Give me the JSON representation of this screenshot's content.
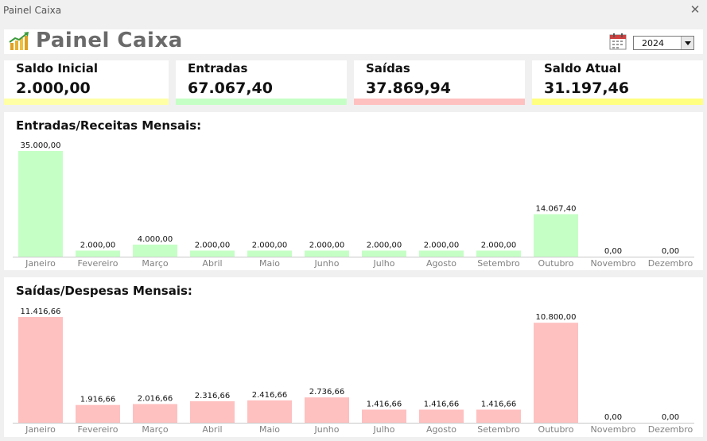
{
  "window": {
    "title": "Painel Caixa"
  },
  "header": {
    "title": "Painel Caixa",
    "year": "2024"
  },
  "cards": [
    {
      "label": "Saldo Inicial",
      "value": "2.000,00",
      "color": "#ffffa6"
    },
    {
      "label": "Entradas",
      "value": "67.067,40",
      "color": "#c6ffc6"
    },
    {
      "label": "Saídas",
      "value": "37.869,94",
      "color": "#ffc0c0"
    },
    {
      "label": "Saldo Atual",
      "value": "31.197,46",
      "color": "#ffff80"
    }
  ],
  "chart_data": [
    {
      "type": "bar",
      "title": "Entradas/Receitas Mensais:",
      "categories": [
        "Janeiro",
        "Fevereiro",
        "Março",
        "Abril",
        "Maio",
        "Junho",
        "Julho",
        "Agosto",
        "Setembro",
        "Outubro",
        "Novembro",
        "Dezembro"
      ],
      "values": [
        35000,
        2000,
        4000,
        2000,
        2000,
        2000,
        2000,
        2000,
        2000,
        14067.4,
        0,
        0
      ],
      "labels": [
        "35.000,00",
        "2.000,00",
        "4.000,00",
        "2.000,00",
        "2.000,00",
        "2.000,00",
        "2.000,00",
        "2.000,00",
        "2.000,00",
        "14.067,40",
        "0,00",
        "0,00"
      ],
      "color": "#c6ffc6",
      "ylim": [
        0,
        35000
      ],
      "grid": false
    },
    {
      "type": "bar",
      "title": "Saídas/Despesas Mensais:",
      "categories": [
        "Janeiro",
        "Fevereiro",
        "Março",
        "Abril",
        "Maio",
        "Junho",
        "Julho",
        "Agosto",
        "Setembro",
        "Outubro",
        "Novembro",
        "Dezembro"
      ],
      "values": [
        11416.66,
        1916.66,
        2016.66,
        2316.66,
        2416.66,
        2736.66,
        1416.66,
        1416.66,
        1416.66,
        10800,
        0,
        0
      ],
      "labels": [
        "11.416,66",
        "1.916,66",
        "2.016,66",
        "2.316,66",
        "2.416,66",
        "2.736,66",
        "1.416,66",
        "1.416,66",
        "1.416,66",
        "10.800,00",
        "0,00",
        "0,00"
      ],
      "color": "#ffc0c0",
      "ylim": [
        0,
        11416.66
      ],
      "grid": false
    }
  ]
}
